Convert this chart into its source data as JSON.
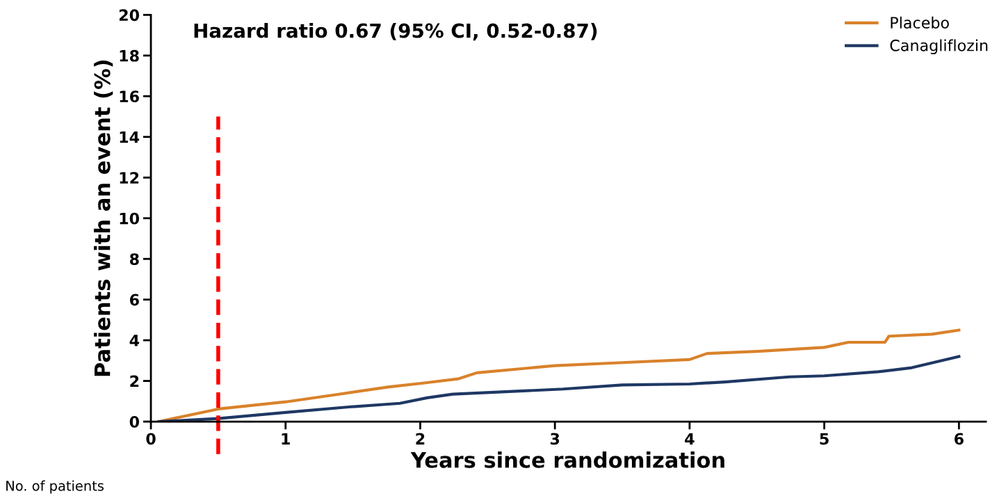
{
  "chart_data": {
    "type": "line",
    "title": "Hazard ratio 0.67 (95% CI, 0.52-0.87)",
    "xlabel": "Years since randomization",
    "ylabel": "Patients with an event (%)",
    "series": [
      {
        "name": "Placebo",
        "color": "#d9822b",
        "x": [
          0.06,
          0.5,
          1.0,
          1.35,
          1.76,
          2.03,
          2.28,
          2.42,
          3.0,
          3.5,
          4.0,
          4.13,
          4.5,
          5.0,
          5.18,
          5.45,
          5.48,
          5.8,
          6.0
        ],
        "values": [
          0,
          0.62,
          0.97,
          1.3,
          1.7,
          1.9,
          2.1,
          2.4,
          2.75,
          2.9,
          3.05,
          3.35,
          3.45,
          3.65,
          3.9,
          3.9,
          4.2,
          4.3,
          4.5
        ]
      },
      {
        "name": "Canagliflozin",
        "color": "#1f3864",
        "x": [
          0.06,
          0.5,
          1.0,
          1.47,
          1.85,
          2.05,
          2.24,
          3.06,
          3.5,
          4.0,
          4.26,
          4.74,
          5.0,
          5.4,
          5.65,
          6.0
        ],
        "values": [
          0,
          0.15,
          0.45,
          0.72,
          0.9,
          1.17,
          1.35,
          1.6,
          1.8,
          1.85,
          1.95,
          2.2,
          2.25,
          2.45,
          2.65,
          3.2
        ]
      }
    ],
    "xlim": [
      0,
      6.2
    ],
    "xticks": [
      0,
      1,
      2,
      3,
      4,
      5,
      6
    ],
    "ylim": [
      0,
      20
    ],
    "yticks": [
      0,
      2,
      4,
      6,
      8,
      10,
      12,
      14,
      16,
      18,
      20
    ],
    "ref_lines": [
      {
        "axis": "x",
        "value": 0.5,
        "color": "#ff0000",
        "line_style": "dashed"
      }
    ],
    "legend": "top right",
    "grid": false,
    "annotations": [
      "No. of patients"
    ]
  }
}
